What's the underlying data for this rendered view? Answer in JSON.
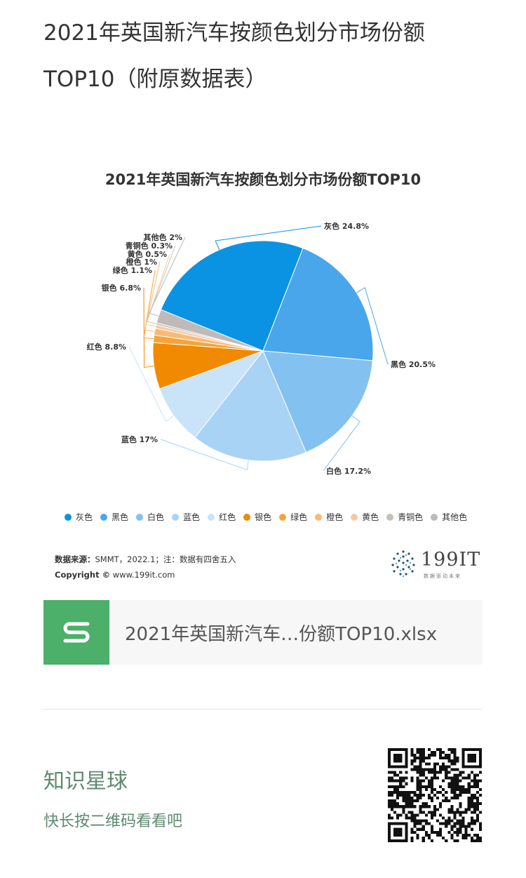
{
  "article": {
    "title": "2021年英国新汽车按颜色划分市场份额TOP10（附原数据表）"
  },
  "chart_data": {
    "type": "pie",
    "title": "2021年英国新汽车按颜色划分市场份额TOP10",
    "unit": "%",
    "slices": [
      {
        "name": "灰色",
        "value": 24.8,
        "label": "灰色 24.8%",
        "color": "#0a93e2"
      },
      {
        "name": "黑色",
        "value": 20.5,
        "label": "黑色 20.5%",
        "color": "#4aa6ea"
      },
      {
        "name": "白色",
        "value": 17.2,
        "label": "白色 17.2%",
        "color": "#83c1f1"
      },
      {
        "name": "蓝色",
        "value": 17,
        "label": "蓝色 17%",
        "color": "#a9d3f5"
      },
      {
        "name": "红色",
        "value": 8.8,
        "label": "红色 8.8%",
        "color": "#c9e3f8"
      },
      {
        "name": "银色",
        "value": 6.8,
        "label": "银色 6.8%",
        "color": "#f18a00"
      },
      {
        "name": "绿色",
        "value": 1.1,
        "label": "绿色 1.1%",
        "color": "#f5a43a"
      },
      {
        "name": "橙色",
        "value": 1,
        "label": "橙色 1%",
        "color": "#f7bb77"
      },
      {
        "name": "黄色",
        "value": 0.5,
        "label": "黄色 0.5%",
        "color": "#f5c9a6"
      },
      {
        "name": "青铜色",
        "value": 0.3,
        "label": "青铜色 0.3%",
        "color": "#c8c0b8"
      },
      {
        "name": "其他色",
        "value": 2,
        "label": "其他色 2%",
        "color": "#bdbab7"
      }
    ],
    "legend_placement": "bottom"
  },
  "source": {
    "label": "数据来源：",
    "text": "SMMT，2022.1；注：数据有四舍五入",
    "copyright_label": "Copyright ©",
    "copyright_text": " www.199it.com"
  },
  "logo": {
    "name": "199IT",
    "tagline": "数据驱动未来"
  },
  "file": {
    "name": "2021年英国新汽车…份额TOP10.xlsx",
    "icon": "spreadsheet-s-icon",
    "color": "#4caf6a"
  },
  "planet": {
    "title": "知识星球",
    "subtitle": "快长按二维码看看吧",
    "accent": "#5e8a6f"
  }
}
